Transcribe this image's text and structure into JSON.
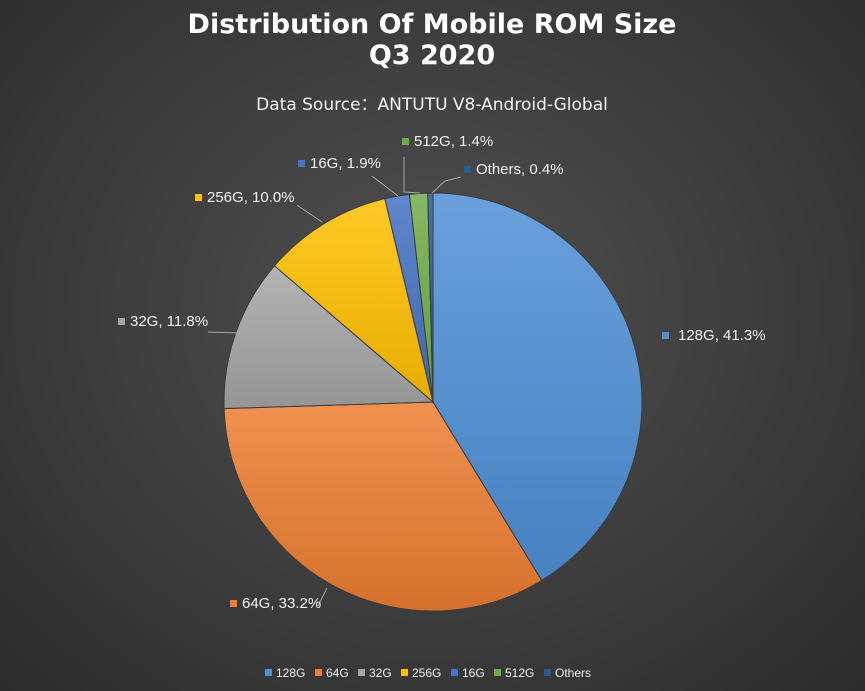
{
  "chart_data": {
    "type": "pie",
    "title_line1": "Distribution Of Mobile ROM Size",
    "title_line2": "Q3 2020",
    "subtitle": "Data Source：ANTUTU V8-Android-Global",
    "legend_position": "bottom",
    "start_angle_deg": 0,
    "direction": "clockwise",
    "slices": [
      {
        "name": "128G",
        "value": 41.3,
        "label": "128G, 41.3%",
        "color": "#4f8fd6"
      },
      {
        "name": "64G",
        "value": 33.2,
        "label": "64G, 33.2%",
        "color": "#ed7d31"
      },
      {
        "name": "32G",
        "value": 11.8,
        "label": "32G, 11.8%",
        "color": "#a5a5a5"
      },
      {
        "name": "256G",
        "value": 10.0,
        "label": "256G, 10.0%",
        "color": "#ffc000"
      },
      {
        "name": "16G",
        "value": 1.9,
        "label": "16G, 1.9%",
        "color": "#4472c4"
      },
      {
        "name": "512G",
        "value": 1.4,
        "label": "512G, 1.4%",
        "color": "#70ad47"
      },
      {
        "name": "Others",
        "value": 0.4,
        "label": "Others, 0.4%",
        "color": "#255e91"
      }
    ]
  }
}
